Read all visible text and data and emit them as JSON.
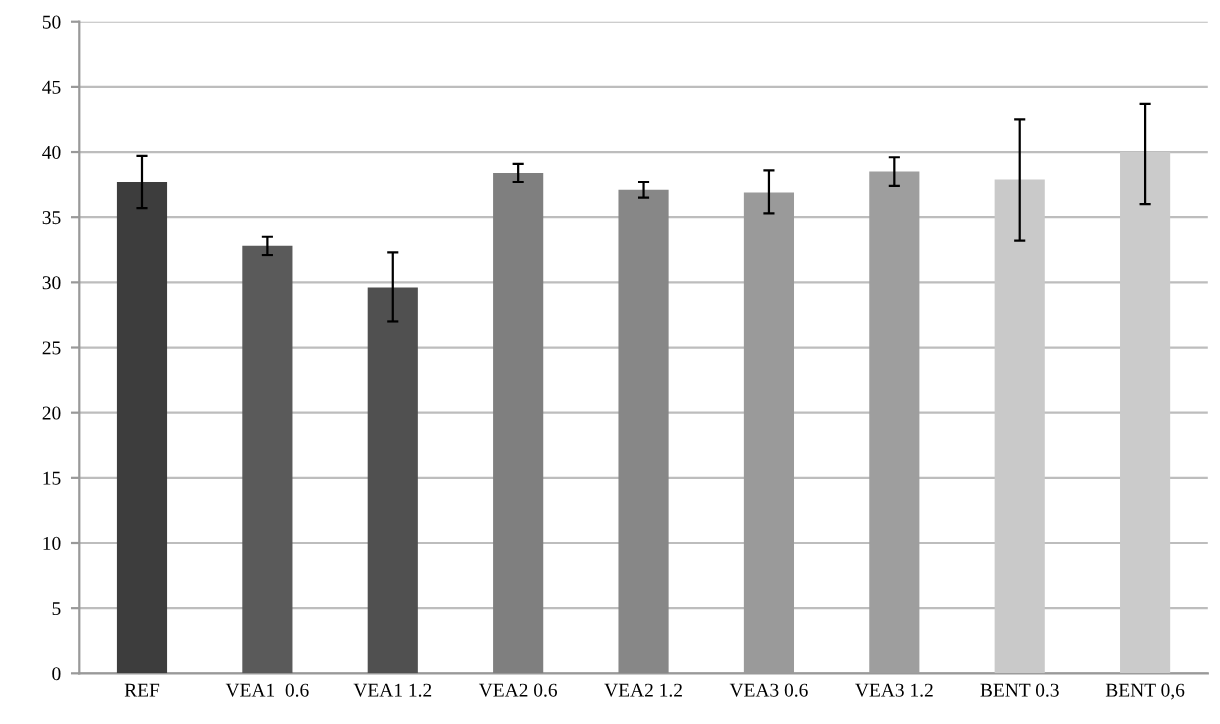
{
  "chart_data": {
    "type": "bar",
    "categories": [
      "REF",
      "VEA1  0.6",
      "VEA1 1.2",
      "VEA2 0.6",
      "VEA2 1.2",
      "VEA3 0.6",
      "VEA3 1.2",
      "BENT 0.3",
      "BENT 0,6"
    ],
    "values": [
      37.7,
      32.8,
      29.6,
      38.4,
      37.1,
      36.9,
      38.5,
      37.9,
      40.0
    ],
    "errors": [
      [
        35.7,
        39.7
      ],
      [
        32.1,
        33.5
      ],
      [
        27.0,
        32.3
      ],
      [
        37.7,
        39.1
      ],
      [
        36.5,
        37.7
      ],
      [
        35.3,
        38.6
      ],
      [
        37.4,
        39.6
      ],
      [
        33.2,
        42.5
      ],
      [
        36.0,
        43.7
      ]
    ],
    "colors": [
      "#3d3d3d",
      "#5a5a5a",
      "#505050",
      "#7f7f7f",
      "#878787",
      "#9a9a9a",
      "#9e9e9e",
      "#c9c9c9",
      "#cbcbcb"
    ],
    "ylim": [
      0,
      50
    ],
    "yticks": [
      0,
      5,
      10,
      15,
      20,
      25,
      30,
      35,
      40,
      45,
      50
    ],
    "grid": "y"
  }
}
